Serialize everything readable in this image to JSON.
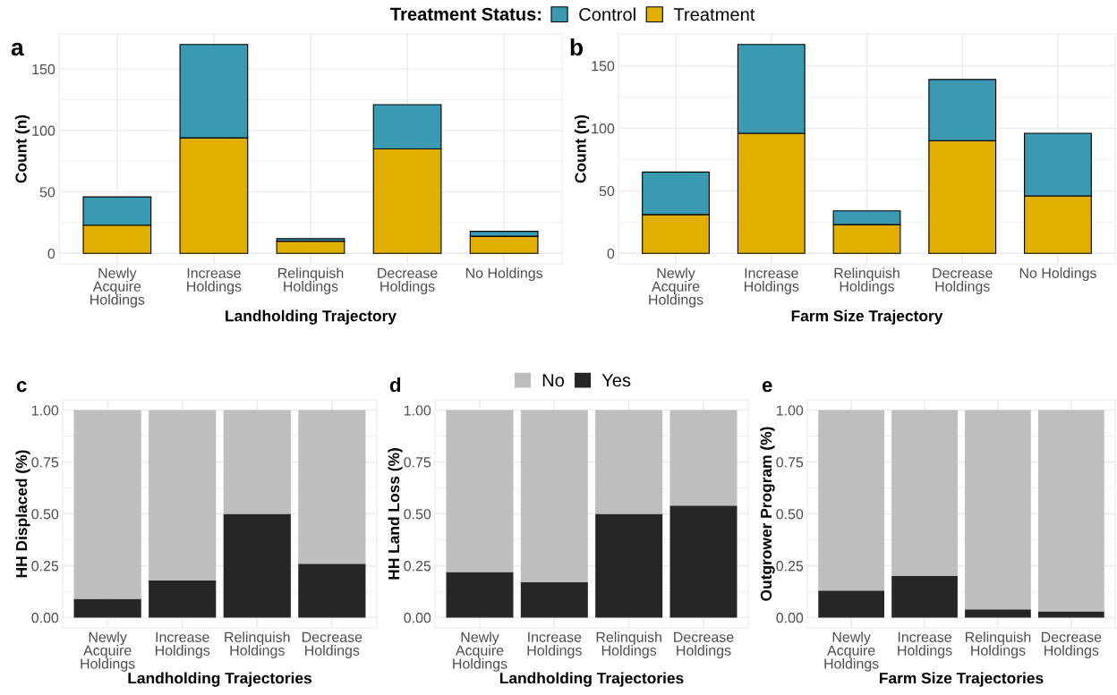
{
  "chart_data": [
    {
      "type": "bar",
      "title": "a",
      "xlabel": "Landholding Trajectory",
      "ylabel": "Count (n)",
      "legend_title": "Treatment Status:",
      "categories": [
        "Newly\nAcquire\nHoldings",
        "Increase\nHoldings",
        "Relinquish\nHoldings",
        "Decrease\nHoldings",
        "No Holdings"
      ],
      "stacked": true,
      "series": [
        {
          "name": "Treatment",
          "color": "#e1af00",
          "values": [
            23,
            94,
            10,
            85,
            14
          ]
        },
        {
          "name": "Control",
          "color": "#3b9ab2",
          "values": [
            23,
            76,
            2,
            36,
            4
          ]
        }
      ],
      "ylim": [
        -8.5,
        178.5
      ],
      "yticks": [
        0,
        50,
        100,
        150
      ],
      "grid": true,
      "legend": "top"
    },
    {
      "type": "bar",
      "title": "b",
      "xlabel": "Farm Size Trajectory",
      "ylabel": "Count (n)",
      "categories": [
        "Newly\nAcquire\nHoldings",
        "Increase\nHoldings",
        "Relinquish\nHoldings",
        "Decrease\nHoldings",
        "No Holdings"
      ],
      "stacked": true,
      "series": [
        {
          "name": "Treatment",
          "color": "#e1af00",
          "values": [
            31,
            96,
            23,
            90,
            46
          ]
        },
        {
          "name": "Control",
          "color": "#3b9ab2",
          "values": [
            34,
            71,
            11,
            49,
            50
          ]
        }
      ],
      "ylim": [
        -8.4,
        175.4
      ],
      "yticks": [
        0,
        50,
        100,
        150
      ],
      "grid": true
    },
    {
      "type": "bar",
      "title": "c",
      "xlabel": "Landholding Trajectories",
      "ylabel": "HH Displaced (%)",
      "categories": [
        "Newly\nAcquire\nHoldings",
        "Increase\nHoldings",
        "Relinquish\nHoldings",
        "Decrease\nHoldings"
      ],
      "stacked": true,
      "series": [
        {
          "name": "Yes",
          "color": "#262626",
          "values": [
            0.09,
            0.18,
            0.5,
            0.26
          ]
        },
        {
          "name": "No",
          "color": "#bebebe",
          "values": [
            0.91,
            0.82,
            0.5,
            0.74
          ]
        }
      ],
      "ylim": [
        -0.05,
        1.05
      ],
      "yticks": [
        {
          "value": 0,
          "label": "0.00"
        },
        {
          "value": 0.25,
          "label": "0.25"
        },
        {
          "value": 0.5,
          "label": "0.50"
        },
        {
          "value": 0.75,
          "label": "0.75"
        },
        {
          "value": 1,
          "label": "1.00"
        }
      ],
      "grid": true,
      "legend": "top"
    },
    {
      "type": "bar",
      "title": "d",
      "xlabel": "Landholding Trajectories",
      "ylabel": "HH Land Loss (%)",
      "categories": [
        "Newly\nAcquire\nHoldings",
        "Increase\nHoldings",
        "Relinquish\nHoldings",
        "Decrease\nHoldings"
      ],
      "stacked": true,
      "series": [
        {
          "name": "Yes",
          "color": "#262626",
          "values": [
            0.22,
            0.17,
            0.5,
            0.54
          ]
        },
        {
          "name": "No",
          "color": "#bebebe",
          "values": [
            0.78,
            0.83,
            0.5,
            0.46
          ]
        }
      ],
      "ylim": [
        -0.05,
        1.05
      ],
      "yticks": [
        {
          "value": 0,
          "label": "0.00"
        },
        {
          "value": 0.25,
          "label": "0.25"
        },
        {
          "value": 0.5,
          "label": "0.50"
        },
        {
          "value": 0.75,
          "label": "0.75"
        },
        {
          "value": 1,
          "label": "1.00"
        }
      ],
      "grid": true
    },
    {
      "type": "bar",
      "title": "e",
      "xlabel": "Farm Size Trajectories",
      "ylabel": "Outgrower Program (%)",
      "categories": [
        "Newly\nAcquire\nHoldings",
        "Increase\nHoldings",
        "Relinquish\nHoldings",
        "Decrease\nHoldings"
      ],
      "stacked": true,
      "series": [
        {
          "name": "Yes",
          "color": "#262626",
          "values": [
            0.13,
            0.2,
            0.04,
            0.03
          ]
        },
        {
          "name": "No",
          "color": "#bebebe",
          "values": [
            0.87,
            0.8,
            0.96,
            0.97
          ]
        }
      ],
      "ylim": [
        -0.05,
        1.05
      ],
      "yticks": [
        {
          "value": 0,
          "label": "0.00"
        },
        {
          "value": 0.25,
          "label": "0.25"
        },
        {
          "value": 0.5,
          "label": "0.50"
        },
        {
          "value": 0.75,
          "label": "0.75"
        },
        {
          "value": 1,
          "label": "1.00"
        }
      ],
      "grid": true
    }
  ]
}
